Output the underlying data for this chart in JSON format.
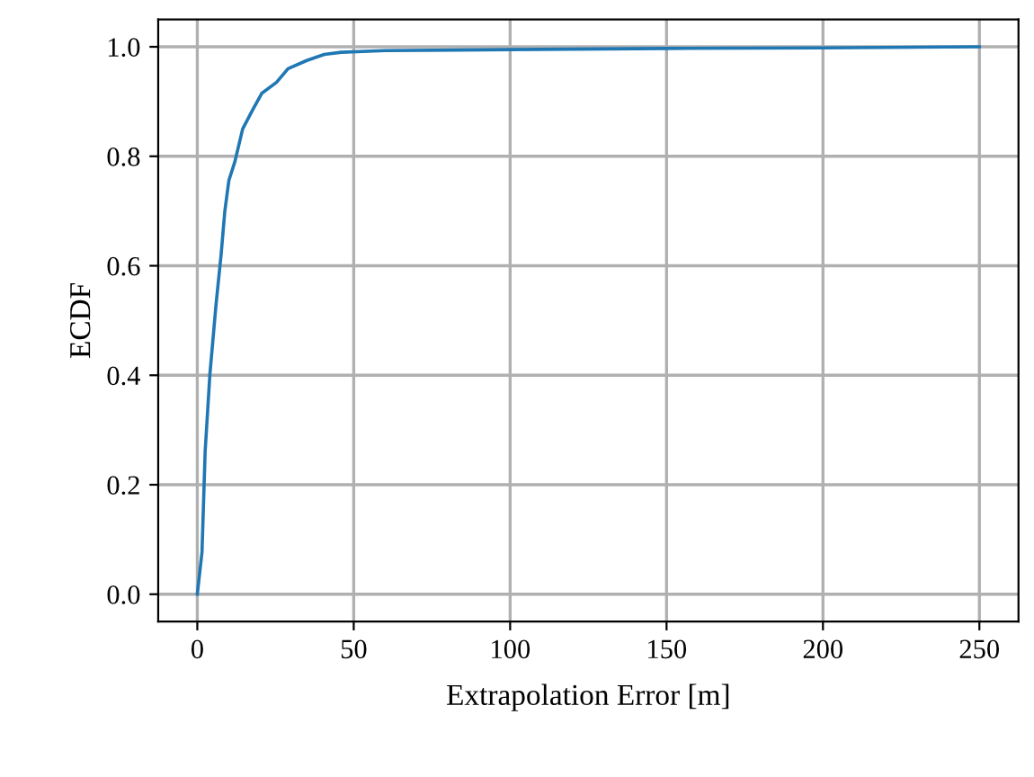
{
  "chart_data": {
    "type": "line",
    "xlabel": "Extrapolation Error [m]",
    "ylabel": "ECDF",
    "series": [
      {
        "color": "#1f77b4",
        "x": [
          0,
          1.5,
          2.5,
          4,
          6,
          7.6,
          8.8,
          10.1,
          12,
          14.5,
          17.7,
          20.6,
          25.3,
          29,
          35,
          40.6,
          46,
          60,
          100,
          150,
          200,
          250
        ],
        "values": [
          0,
          0.077,
          0.26,
          0.4,
          0.53,
          0.62,
          0.7,
          0.756,
          0.79,
          0.85,
          0.885,
          0.915,
          0.935,
          0.96,
          0.975,
          0.986,
          0.99,
          0.993,
          0.995,
          0.997,
          0.998,
          1.0
        ]
      }
    ],
    "xlim": [
      -12.5,
      262.5
    ],
    "ylim": [
      -0.05,
      1.05
    ],
    "xticks": [
      0,
      50,
      100,
      150,
      200,
      250
    ],
    "yticks": [
      {
        "value": 0,
        "label": "0.0"
      },
      {
        "value": 0.2,
        "label": "0.2"
      },
      {
        "value": 0.4,
        "label": "0.4"
      },
      {
        "value": 0.6,
        "label": "0.6"
      },
      {
        "value": 0.8,
        "label": "0.8"
      },
      {
        "value": 1.0,
        "label": "1.0"
      }
    ],
    "grid": true
  }
}
